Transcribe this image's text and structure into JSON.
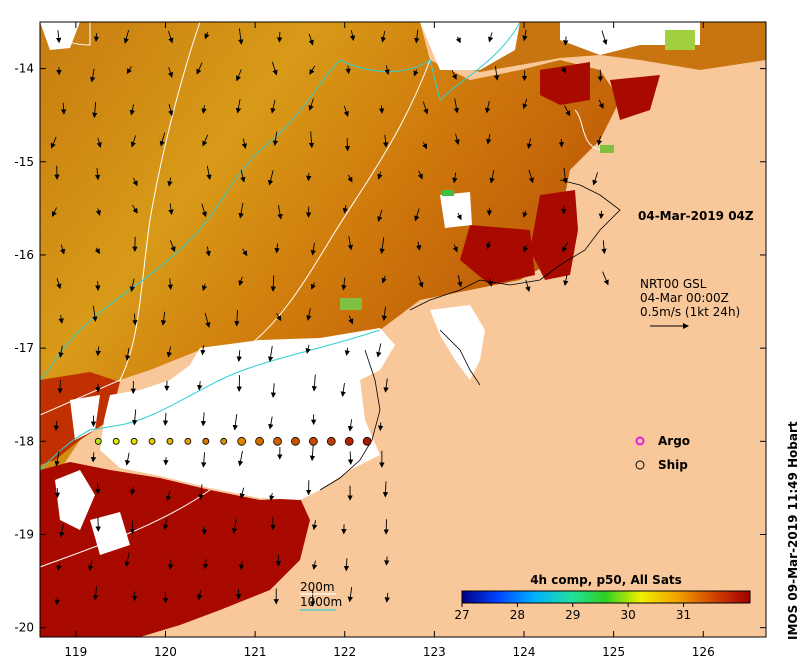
{
  "timestamp": "04-Mar-2019 04Z",
  "current_legend": {
    "line1": "NRT00 GSL",
    "line2": "04-Mar 00:00Z",
    "line3": "0.5m/s (1kt 24h)"
  },
  "symbols": {
    "argo_label": "Argo",
    "ship_label": "Ship"
  },
  "contours": {
    "label_200": "200m",
    "label_1000": "1000m",
    "color_200": "#ffffff",
    "color_1000": "#30d0d0"
  },
  "colorbar": {
    "title": "4h comp, p50, All Sats",
    "ticks": [
      "27",
      "28",
      "29",
      "30",
      "31"
    ]
  },
  "credit": "IMOS 09-Mar-2019 11:49 Hobart",
  "axes": {
    "lon_ticks": [
      "119",
      "120",
      "121",
      "122",
      "123",
      "124",
      "125",
      "126"
    ],
    "lat_ticks": [
      "-14",
      "-15",
      "-16",
      "-17",
      "-18",
      "-19",
      "-20"
    ]
  },
  "ship_track_sst": [
    29.7,
    29.9,
    30.2,
    30.4,
    30.6,
    30.8,
    31.2,
    31.0,
    31.1,
    31.3,
    31.4,
    31.5,
    31.6,
    31.7,
    31.9,
    32.0
  ]
}
